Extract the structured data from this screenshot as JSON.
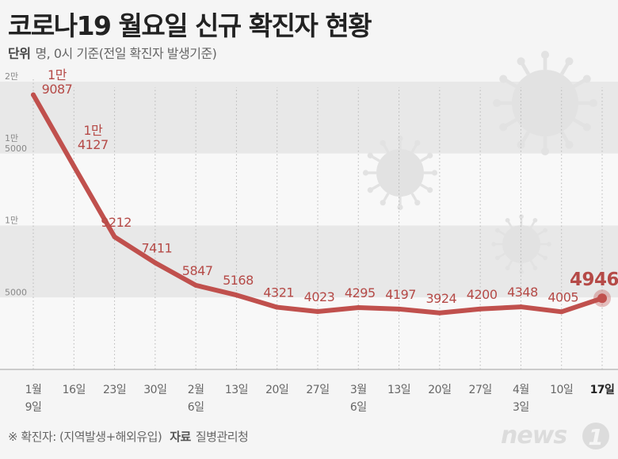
{
  "title": "코로나19 월요일 신규 확진자 현황",
  "unit": {
    "label": "단위",
    "text": "명, 0시 기준(전일 확진자 발생기준)"
  },
  "footnote": {
    "note": "※ 확진자: (지역발생+해외유입)",
    "source_label": "자료",
    "source": "질병관리청"
  },
  "logo": {
    "text": "news",
    "mark": "1"
  },
  "colors": {
    "line": "#c0504d",
    "label": "#b54a47",
    "band": "#e8e8e8",
    "background": "#f5f5f5"
  },
  "chart_data": {
    "type": "line",
    "title": "코로나19 월요일 신규 확진자 현황",
    "ylabel": "명",
    "ylim": [
      0,
      20000
    ],
    "yticks": [
      {
        "value": 20000,
        "lines": [
          "2만"
        ]
      },
      {
        "value": 15000,
        "lines": [
          "1만",
          "5000"
        ]
      },
      {
        "value": 10000,
        "lines": [
          "1만"
        ]
      },
      {
        "value": 5000,
        "lines": [
          "5000"
        ]
      }
    ],
    "categories": [
      {
        "lines": [
          "1월",
          "9일"
        ]
      },
      {
        "lines": [
          "16일"
        ]
      },
      {
        "lines": [
          "23일"
        ]
      },
      {
        "lines": [
          "30일"
        ]
      },
      {
        "lines": [
          "2월",
          "6일"
        ]
      },
      {
        "lines": [
          "13일"
        ]
      },
      {
        "lines": [
          "20일"
        ]
      },
      {
        "lines": [
          "27일"
        ]
      },
      {
        "lines": [
          "3월",
          "6일"
        ]
      },
      {
        "lines": [
          "13일"
        ]
      },
      {
        "lines": [
          "20일"
        ]
      },
      {
        "lines": [
          "27일"
        ]
      },
      {
        "lines": [
          "4월",
          "3일"
        ]
      },
      {
        "lines": [
          "10일"
        ]
      },
      {
        "lines": [
          "17일"
        ]
      }
    ],
    "values": [
      19087,
      14127,
      9212,
      7411,
      5847,
      5168,
      4321,
      4023,
      4295,
      4197,
      3924,
      4200,
      4348,
      4005,
      4946
    ],
    "point_labels": [
      [
        "1만",
        "9087"
      ],
      [
        "1만",
        "4127"
      ],
      [
        "9212"
      ],
      [
        "7411"
      ],
      [
        "5847"
      ],
      [
        "5168"
      ],
      [
        "4321"
      ],
      [
        "4023"
      ],
      [
        "4295"
      ],
      [
        "4197"
      ],
      [
        "3924"
      ],
      [
        "4200"
      ],
      [
        "4348"
      ],
      [
        "4005"
      ],
      [
        "4946"
      ]
    ],
    "highlight_index": 14
  }
}
